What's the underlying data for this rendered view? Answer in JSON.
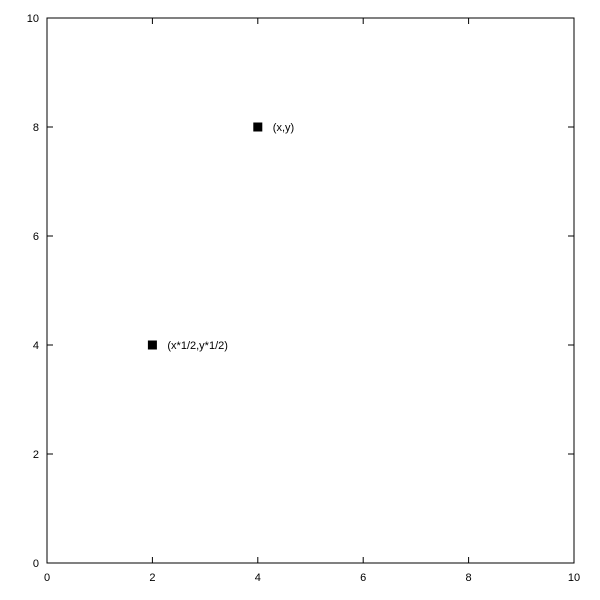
{
  "chart_data": {
    "type": "scatter",
    "title": "",
    "xlabel": "",
    "ylabel": "",
    "xlim": [
      0,
      10
    ],
    "ylim": [
      0,
      10
    ],
    "x_ticks": [
      0,
      2,
      4,
      6,
      8,
      10
    ],
    "y_ticks": [
      0,
      2,
      4,
      6,
      8,
      10
    ],
    "grid": false,
    "marker": "filled-square",
    "marker_color": "#000000",
    "points": [
      {
        "x": 4,
        "y": 8,
        "label": "(x,y)"
      },
      {
        "x": 2,
        "y": 4,
        "label": "(x*1/2,y*1/2)"
      }
    ]
  }
}
